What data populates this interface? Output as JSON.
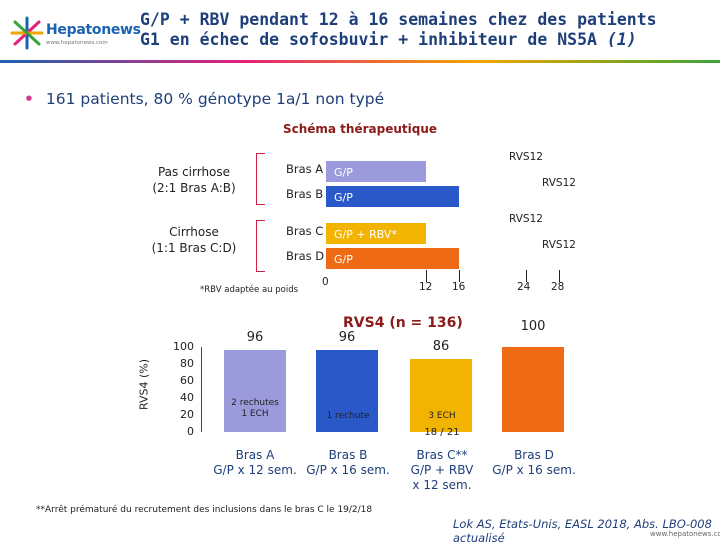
{
  "header": {
    "logo_name": "Hepatonews",
    "logo_url": "www.hepatonews.com",
    "title_line1": "G/P + RBV pendant 12 à 16 semaines chez des patients",
    "title_line2_main": "G1 en échec de sofosbuvir + inhibiteur de NS5A",
    "title_line2_ref": "(1)"
  },
  "bullet": "161 patients, 80 % génotype 1a/1 non typé",
  "schema": {
    "title": "Schéma thérapeutique",
    "group1": [
      "Pas cirrhose",
      "(2:1 Bras A:B)"
    ],
    "group2": [
      "Cirrhose",
      "(1:1 Bras C:D)"
    ],
    "arms": [
      {
        "label": "Bras A",
        "treatment": "G/P",
        "weeks": 12,
        "rvs": "RVS12",
        "color": "#9b9bdb"
      },
      {
        "label": "Bras B",
        "treatment": "G/P",
        "weeks": 16,
        "rvs": "RVS12",
        "color": "#2a58c9"
      },
      {
        "label": "Bras C",
        "treatment": "G/P + RBV*",
        "weeks": 12,
        "rvs": "RVS12",
        "color": "#f2b400"
      },
      {
        "label": "Bras D",
        "treatment": "G/P",
        "weeks": 16,
        "rvs": "RVS12",
        "color": "#ef6a14"
      }
    ],
    "axis_ticks": [
      "0",
      "12",
      "16",
      "24",
      "28"
    ],
    "rbv_note": "*RBV adaptée au poids"
  },
  "chart_data": {
    "type": "bar",
    "title": "RVS4 (n = 136)",
    "ylabel": "RVS4 (%)",
    "ylim": [
      0,
      100
    ],
    "yticks": [
      "100",
      "80",
      "60",
      "40",
      "20",
      "0"
    ],
    "categories": [
      [
        "Bras A",
        "G/P x 12 sem."
      ],
      [
        "Bras B",
        "G/P x 16 sem."
      ],
      [
        "Bras C**",
        "G/P + RBV",
        "x 12 sem."
      ],
      [
        "Bras D",
        "G/P x 16 sem."
      ]
    ],
    "values": [
      96,
      96,
      86,
      100
    ],
    "value_labels": [
      "96",
      "96",
      "86",
      "100"
    ],
    "notes": [
      [
        "2 rechutes",
        "1 ECH"
      ],
      [
        "1 rechute"
      ],
      [
        "3 ECH"
      ],
      []
    ],
    "fractions": [
      "",
      "",
      "18 / 21",
      ""
    ],
    "colors": [
      "#9b9bdb",
      "#2a58c9",
      "#f2b400",
      "#ef6a14"
    ]
  },
  "footnote": "**Arrêt prématuré du recrutement des inclusions dans le bras C le 19/2/18",
  "reference": "Lok AS, Etats-Unis, EASL 2018, Abs. LBO-008 actualisé",
  "bottom_url": "www.hepatonews.com"
}
